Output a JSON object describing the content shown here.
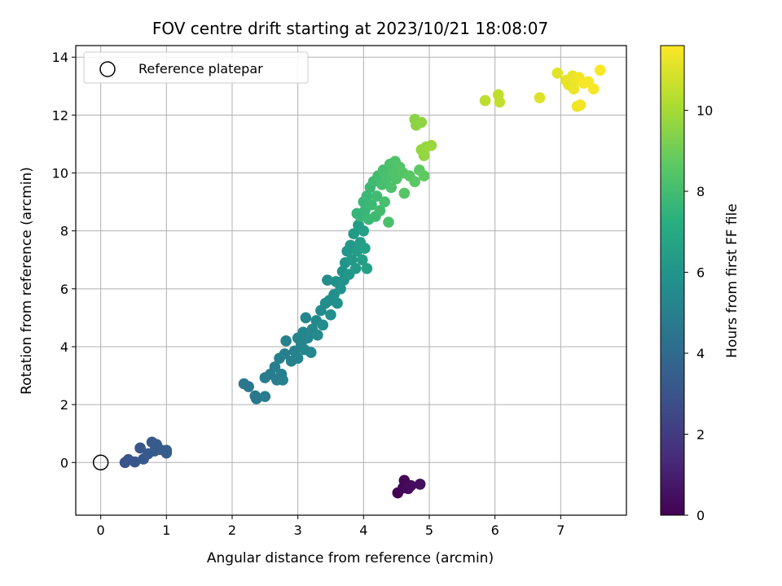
{
  "chart_data": {
    "type": "scatter",
    "title": "FOV centre drift starting at 2023/10/21 18:08:07",
    "xlabel": "Angular distance from reference (arcmin)",
    "ylabel": "Rotation from reference (arcmin)",
    "xlim": [
      -0.38,
      8.0
    ],
    "ylim": [
      -1.82,
      14.4
    ],
    "xticks": [
      0,
      1,
      2,
      3,
      4,
      5,
      6,
      7
    ],
    "yticks": [
      0,
      2,
      4,
      6,
      8,
      10,
      12,
      14
    ],
    "grid": true,
    "legend": {
      "placement": "top-left",
      "entries": [
        "Reference platepar"
      ]
    },
    "colorbar": {
      "label": "Hours from first FF file",
      "colormap": "viridis",
      "range": [
        0,
        11.6
      ],
      "ticks": [
        0,
        2,
        4,
        6,
        8,
        10
      ]
    },
    "reference_point": {
      "x": 0,
      "y": 0
    },
    "series": [
      {
        "x": 4.52,
        "y": -1.05,
        "c": 0.05
      },
      {
        "x": 4.6,
        "y": -0.88,
        "c": 0.15
      },
      {
        "x": 4.62,
        "y": -0.62,
        "c": 0.2
      },
      {
        "x": 4.68,
        "y": -0.9,
        "c": 0.3
      },
      {
        "x": 4.72,
        "y": -0.8,
        "c": 0.35
      },
      {
        "x": 4.86,
        "y": -0.75,
        "c": 0.45
      },
      {
        "x": 0.37,
        "y": 0.0,
        "c": 3.0
      },
      {
        "x": 0.42,
        "y": 0.1,
        "c": 3.05
      },
      {
        "x": 0.52,
        "y": 0.02,
        "c": 3.1
      },
      {
        "x": 0.6,
        "y": 0.5,
        "c": 3.1
      },
      {
        "x": 0.65,
        "y": 0.12,
        "c": 3.15
      },
      {
        "x": 0.72,
        "y": 0.3,
        "c": 3.2
      },
      {
        "x": 0.78,
        "y": 0.7,
        "c": 3.2
      },
      {
        "x": 0.82,
        "y": 0.4,
        "c": 3.25
      },
      {
        "x": 0.85,
        "y": 0.62,
        "c": 3.3
      },
      {
        "x": 0.9,
        "y": 0.45,
        "c": 3.3
      },
      {
        "x": 1.0,
        "y": 0.42,
        "c": 3.4
      },
      {
        "x": 1.0,
        "y": 0.33,
        "c": 3.4
      },
      {
        "x": 2.18,
        "y": 2.72,
        "c": 4.6
      },
      {
        "x": 2.25,
        "y": 2.62,
        "c": 4.65
      },
      {
        "x": 2.35,
        "y": 2.3,
        "c": 4.7
      },
      {
        "x": 2.37,
        "y": 2.2,
        "c": 4.7
      },
      {
        "x": 2.5,
        "y": 2.28,
        "c": 4.75
      },
      {
        "x": 2.5,
        "y": 2.93,
        "c": 4.8
      },
      {
        "x": 2.58,
        "y": 3.05,
        "c": 4.85
      },
      {
        "x": 2.65,
        "y": 3.3,
        "c": 4.9
      },
      {
        "x": 2.68,
        "y": 2.85,
        "c": 4.9
      },
      {
        "x": 2.72,
        "y": 3.6,
        "c": 4.95
      },
      {
        "x": 2.75,
        "y": 3.05,
        "c": 4.95
      },
      {
        "x": 2.77,
        "y": 2.85,
        "c": 5.0
      },
      {
        "x": 2.8,
        "y": 3.75,
        "c": 5.0
      },
      {
        "x": 2.82,
        "y": 4.2,
        "c": 5.05
      },
      {
        "x": 2.9,
        "y": 3.5,
        "c": 5.1
      },
      {
        "x": 2.95,
        "y": 3.85,
        "c": 5.1
      },
      {
        "x": 3.0,
        "y": 3.6,
        "c": 5.15
      },
      {
        "x": 3.0,
        "y": 4.3,
        "c": 5.2
      },
      {
        "x": 3.05,
        "y": 4.1,
        "c": 5.2
      },
      {
        "x": 3.08,
        "y": 4.5,
        "c": 5.25
      },
      {
        "x": 3.1,
        "y": 3.9,
        "c": 5.3
      },
      {
        "x": 3.12,
        "y": 5.0,
        "c": 5.3
      },
      {
        "x": 3.15,
        "y": 4.3,
        "c": 5.35
      },
      {
        "x": 3.2,
        "y": 3.8,
        "c": 5.35
      },
      {
        "x": 3.22,
        "y": 4.6,
        "c": 5.4
      },
      {
        "x": 3.28,
        "y": 4.9,
        "c": 5.45
      },
      {
        "x": 3.3,
        "y": 4.4,
        "c": 5.45
      },
      {
        "x": 3.35,
        "y": 5.25,
        "c": 5.5
      },
      {
        "x": 3.38,
        "y": 4.75,
        "c": 5.55
      },
      {
        "x": 3.42,
        "y": 5.5,
        "c": 5.6
      },
      {
        "x": 3.45,
        "y": 6.3,
        "c": 5.6
      },
      {
        "x": 3.48,
        "y": 5.6,
        "c": 5.65
      },
      {
        "x": 3.5,
        "y": 5.1,
        "c": 5.7
      },
      {
        "x": 3.55,
        "y": 5.8,
        "c": 5.75
      },
      {
        "x": 3.58,
        "y": 6.25,
        "c": 5.8
      },
      {
        "x": 3.6,
        "y": 5.5,
        "c": 5.8
      },
      {
        "x": 3.65,
        "y": 6.0,
        "c": 5.85
      },
      {
        "x": 3.68,
        "y": 6.6,
        "c": 5.9
      },
      {
        "x": 3.7,
        "y": 6.3,
        "c": 5.95
      },
      {
        "x": 3.72,
        "y": 6.9,
        "c": 6.0
      },
      {
        "x": 3.75,
        "y": 7.3,
        "c": 6.05
      },
      {
        "x": 3.78,
        "y": 6.5,
        "c": 6.1
      },
      {
        "x": 3.8,
        "y": 7.5,
        "c": 6.15
      },
      {
        "x": 3.82,
        "y": 7.0,
        "c": 6.2
      },
      {
        "x": 3.85,
        "y": 7.9,
        "c": 6.25
      },
      {
        "x": 3.88,
        "y": 6.7,
        "c": 6.3
      },
      {
        "x": 3.9,
        "y": 7.3,
        "c": 6.35
      },
      {
        "x": 3.92,
        "y": 8.2,
        "c": 6.4
      },
      {
        "x": 3.95,
        "y": 7.6,
        "c": 6.45
      },
      {
        "x": 3.98,
        "y": 7.0,
        "c": 6.5
      },
      {
        "x": 4.0,
        "y": 8.0,
        "c": 6.55
      },
      {
        "x": 4.02,
        "y": 7.4,
        "c": 6.6
      },
      {
        "x": 4.05,
        "y": 6.7,
        "c": 6.6
      },
      {
        "x": 3.9,
        "y": 8.6,
        "c": 7.6
      },
      {
        "x": 3.95,
        "y": 8.5,
        "c": 7.65
      },
      {
        "x": 4.0,
        "y": 9.0,
        "c": 7.7
      },
      {
        "x": 4.02,
        "y": 8.7,
        "c": 7.7
      },
      {
        "x": 4.05,
        "y": 9.2,
        "c": 7.75
      },
      {
        "x": 4.08,
        "y": 8.4,
        "c": 7.8
      },
      {
        "x": 4.1,
        "y": 9.5,
        "c": 7.8
      },
      {
        "x": 4.12,
        "y": 8.9,
        "c": 7.85
      },
      {
        "x": 4.15,
        "y": 9.7,
        "c": 7.9
      },
      {
        "x": 4.18,
        "y": 8.5,
        "c": 7.9
      },
      {
        "x": 4.2,
        "y": 9.2,
        "c": 7.95
      },
      {
        "x": 4.22,
        "y": 9.9,
        "c": 8.0
      },
      {
        "x": 4.25,
        "y": 8.7,
        "c": 8.0
      },
      {
        "x": 4.28,
        "y": 9.6,
        "c": 8.05
      },
      {
        "x": 4.3,
        "y": 10.1,
        "c": 8.1
      },
      {
        "x": 4.32,
        "y": 9.0,
        "c": 8.1
      },
      {
        "x": 4.35,
        "y": 9.8,
        "c": 8.15
      },
      {
        "x": 4.38,
        "y": 8.3,
        "c": 8.2
      },
      {
        "x": 4.4,
        "y": 10.3,
        "c": 8.2
      },
      {
        "x": 4.42,
        "y": 9.5,
        "c": 8.25
      },
      {
        "x": 4.45,
        "y": 10.0,
        "c": 8.3
      },
      {
        "x": 4.48,
        "y": 10.4,
        "c": 8.35
      },
      {
        "x": 4.5,
        "y": 9.8,
        "c": 8.35
      },
      {
        "x": 4.55,
        "y": 10.2,
        "c": 8.4
      },
      {
        "x": 4.6,
        "y": 10.0,
        "c": 8.45
      },
      {
        "x": 4.62,
        "y": 9.3,
        "c": 8.5
      },
      {
        "x": 4.7,
        "y": 9.9,
        "c": 8.55
      },
      {
        "x": 4.78,
        "y": 9.7,
        "c": 8.6
      },
      {
        "x": 4.85,
        "y": 10.1,
        "c": 8.65
      },
      {
        "x": 4.92,
        "y": 9.9,
        "c": 8.7
      },
      {
        "x": 4.78,
        "y": 11.85,
        "c": 9.5
      },
      {
        "x": 4.8,
        "y": 11.65,
        "c": 9.55
      },
      {
        "x": 4.88,
        "y": 11.75,
        "c": 9.6
      },
      {
        "x": 4.88,
        "y": 10.8,
        "c": 9.65
      },
      {
        "x": 4.92,
        "y": 10.6,
        "c": 9.7
      },
      {
        "x": 4.95,
        "y": 10.9,
        "c": 9.75
      },
      {
        "x": 5.03,
        "y": 10.95,
        "c": 9.8
      },
      {
        "x": 5.85,
        "y": 12.5,
        "c": 10.4
      },
      {
        "x": 6.05,
        "y": 12.7,
        "c": 10.5
      },
      {
        "x": 6.07,
        "y": 12.45,
        "c": 10.55
      },
      {
        "x": 6.68,
        "y": 12.6,
        "c": 11.0
      },
      {
        "x": 6.95,
        "y": 13.45,
        "c": 11.1
      },
      {
        "x": 7.08,
        "y": 13.2,
        "c": 11.15
      },
      {
        "x": 7.12,
        "y": 13.05,
        "c": 11.2
      },
      {
        "x": 7.18,
        "y": 13.35,
        "c": 11.25
      },
      {
        "x": 7.2,
        "y": 12.9,
        "c": 11.3
      },
      {
        "x": 7.22,
        "y": 13.2,
        "c": 11.3
      },
      {
        "x": 7.25,
        "y": 12.3,
        "c": 11.35
      },
      {
        "x": 7.28,
        "y": 13.3,
        "c": 11.4
      },
      {
        "x": 7.3,
        "y": 12.35,
        "c": 11.4
      },
      {
        "x": 7.35,
        "y": 13.1,
        "c": 11.45
      },
      {
        "x": 7.42,
        "y": 13.15,
        "c": 11.5
      },
      {
        "x": 7.5,
        "y": 12.9,
        "c": 11.5
      },
      {
        "x": 7.6,
        "y": 13.55,
        "c": 11.55
      }
    ]
  }
}
